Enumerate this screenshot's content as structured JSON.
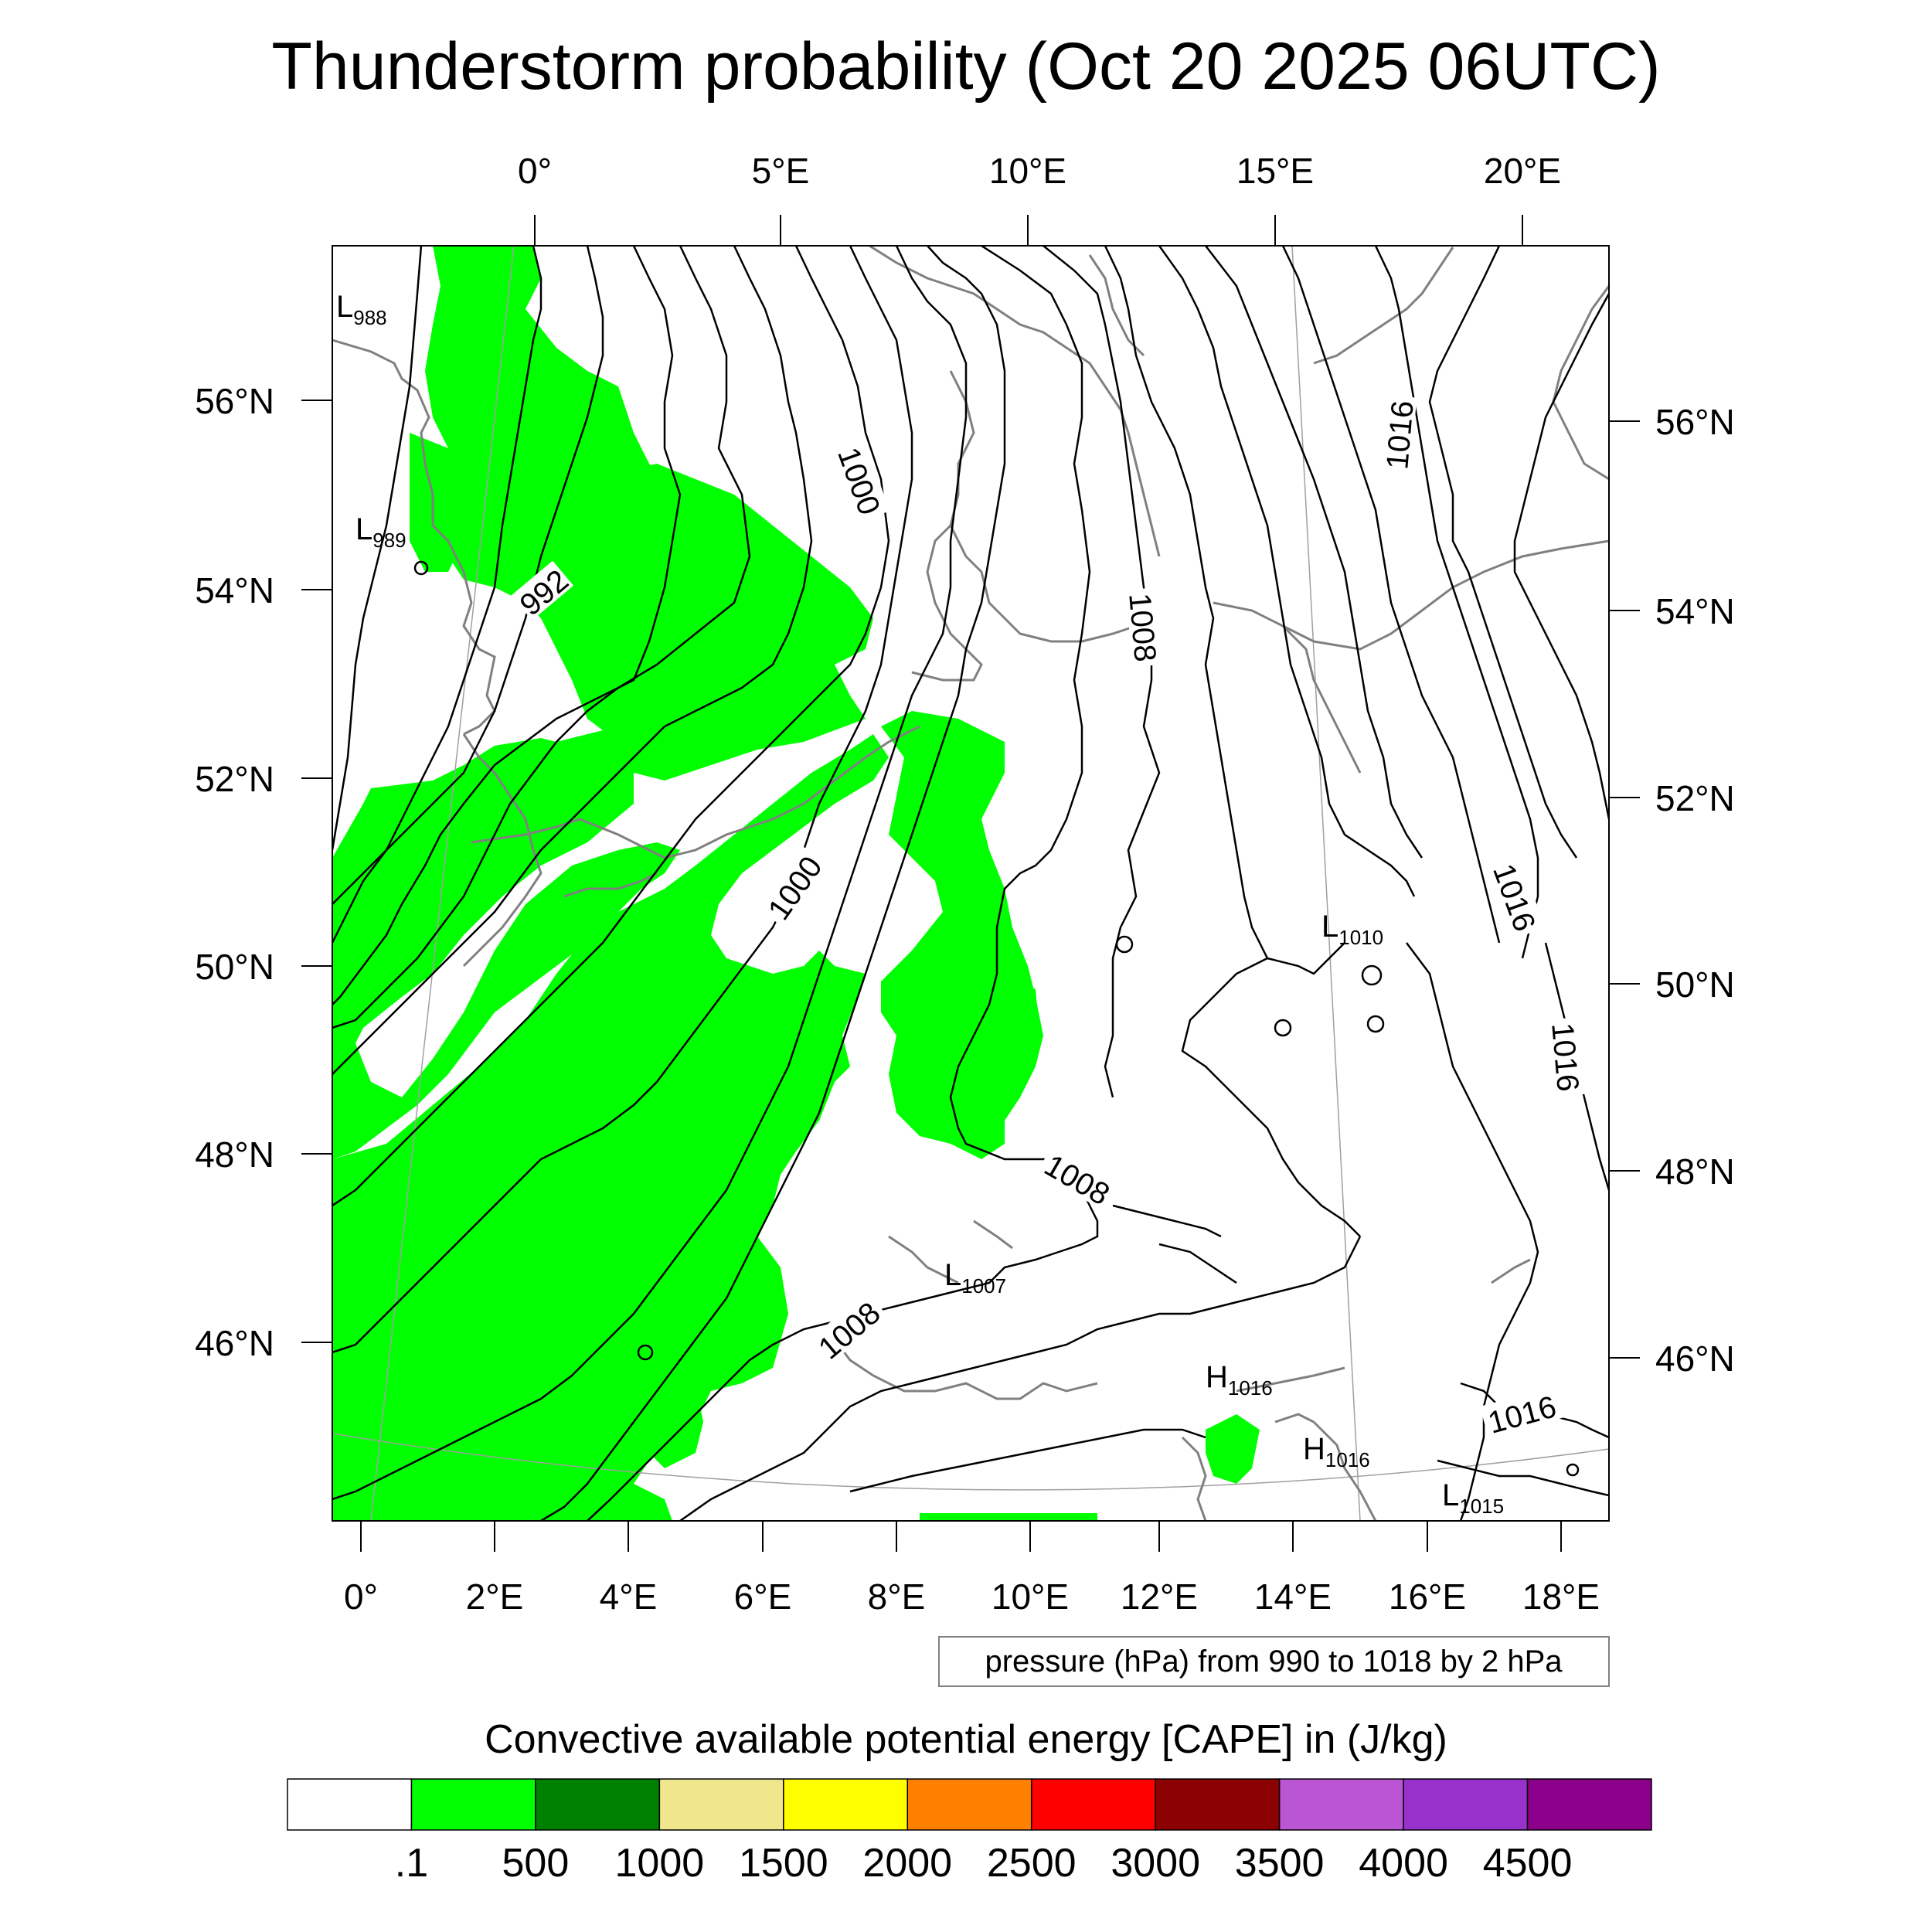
{
  "title": "Thunderstorm probability (Oct 20 2025 06UTC)",
  "axes": {
    "top_lon": [
      "0°",
      "5°E",
      "10°E",
      "15°E",
      "20°E"
    ],
    "bottom_lon": [
      "0°",
      "2°E",
      "4°E",
      "6°E",
      "8°E",
      "10°E",
      "12°E",
      "14°E",
      "16°E",
      "18°E"
    ],
    "left_lat": [
      "56°N",
      "54°N",
      "52°N",
      "50°N",
      "48°N",
      "46°N"
    ],
    "right_lat": [
      "56°N",
      "54°N",
      "52°N",
      "50°N",
      "48°N",
      "46°N"
    ]
  },
  "isobar_labels": [
    "992",
    "1000",
    "1000",
    "1008",
    "1008",
    "1008",
    "1016",
    "1016",
    "1016",
    "1016"
  ],
  "pressure_systems": [
    {
      "type": "L",
      "value": "988"
    },
    {
      "type": "L",
      "value": "989"
    },
    {
      "type": "L",
      "value": "1010"
    },
    {
      "type": "L",
      "value": "1007"
    },
    {
      "type": "H",
      "value": "1016"
    },
    {
      "type": "H",
      "value": "1016"
    },
    {
      "type": "L",
      "value": "1015"
    }
  ],
  "contour_note": "pressure (hPa) from 990 to 1018 by 2 hPa",
  "colorbar": {
    "title": "Convective available potential energy [CAPE] in (J/kg)",
    "labels": [
      ".1",
      "500",
      "1000",
      "1500",
      "2000",
      "2500",
      "3000",
      "3500",
      "4000",
      "4500"
    ],
    "colors": [
      "#ffffff",
      "#00ff00",
      "#008000",
      "#f0e68c",
      "#ffff00",
      "#ff8000",
      "#ff0000",
      "#8b0000",
      "#ba55d3",
      "#9932cc",
      "#8b008b"
    ]
  },
  "colors": {
    "cape_fill": "#00ff00",
    "isobar": "#000000",
    "coastline": "#808080"
  }
}
